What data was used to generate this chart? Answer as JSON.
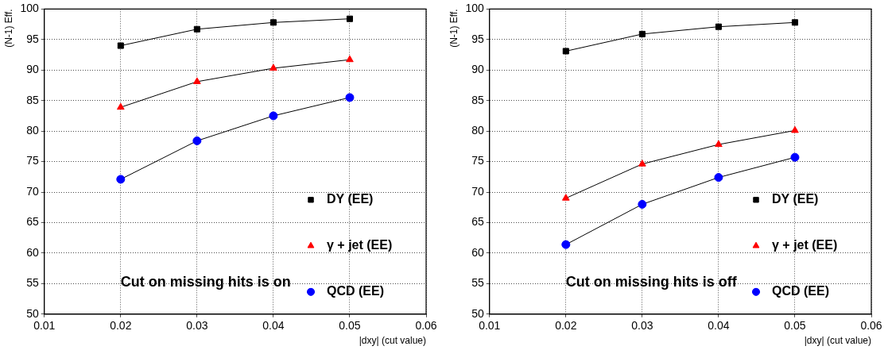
{
  "chart_data": [
    {
      "type": "line",
      "xlabel": "|dxy| (cut value)",
      "ylabel": "(N-1) Eff.",
      "x": [
        0.02,
        0.03,
        0.04,
        0.05
      ],
      "xlim": [
        0.01,
        0.06
      ],
      "xticks": [
        0.01,
        0.02,
        0.03,
        0.04,
        0.05,
        0.06
      ],
      "ylim": [
        50,
        100
      ],
      "yticks": [
        50,
        55,
        60,
        65,
        70,
        75,
        80,
        85,
        90,
        95,
        100
      ],
      "grid": true,
      "legend": "bottom right",
      "annotations": [
        "Cut on missing hits is on"
      ],
      "series": [
        {
          "name": "DY (EE)",
          "color": "#000000",
          "marker": "square",
          "values": [
            94.0,
            96.7,
            97.8,
            98.4
          ]
        },
        {
          "name": "γ + jet (EE)",
          "color": "#ff0000",
          "marker": "triangle",
          "values": [
            83.9,
            88.1,
            90.3,
            91.7
          ]
        },
        {
          "name": "QCD (EE)",
          "color": "#0000ff",
          "marker": "circle",
          "values": [
            72.1,
            78.4,
            82.5,
            85.5
          ]
        }
      ]
    },
    {
      "type": "line",
      "xlabel": "|dxy| (cut value)",
      "ylabel": "(N-1) Eff.",
      "x": [
        0.02,
        0.03,
        0.04,
        0.05
      ],
      "xlim": [
        0.01,
        0.06
      ],
      "xticks": [
        0.01,
        0.02,
        0.03,
        0.04,
        0.05,
        0.06
      ],
      "ylim": [
        50,
        100
      ],
      "yticks": [
        50,
        55,
        60,
        65,
        70,
        75,
        80,
        85,
        90,
        95,
        100
      ],
      "grid": true,
      "legend": "bottom right",
      "annotations": [
        "Cut on missing hits is off"
      ],
      "series": [
        {
          "name": "DY (EE)",
          "color": "#000000",
          "marker": "square",
          "values": [
            93.1,
            95.9,
            97.1,
            97.8
          ]
        },
        {
          "name": "γ + jet (EE)",
          "color": "#ff0000",
          "marker": "triangle",
          "values": [
            69.0,
            74.6,
            77.8,
            80.1
          ]
        },
        {
          "name": "QCD (EE)",
          "color": "#0000ff",
          "marker": "circle",
          "values": [
            61.4,
            68.0,
            72.4,
            75.7
          ]
        }
      ]
    }
  ]
}
